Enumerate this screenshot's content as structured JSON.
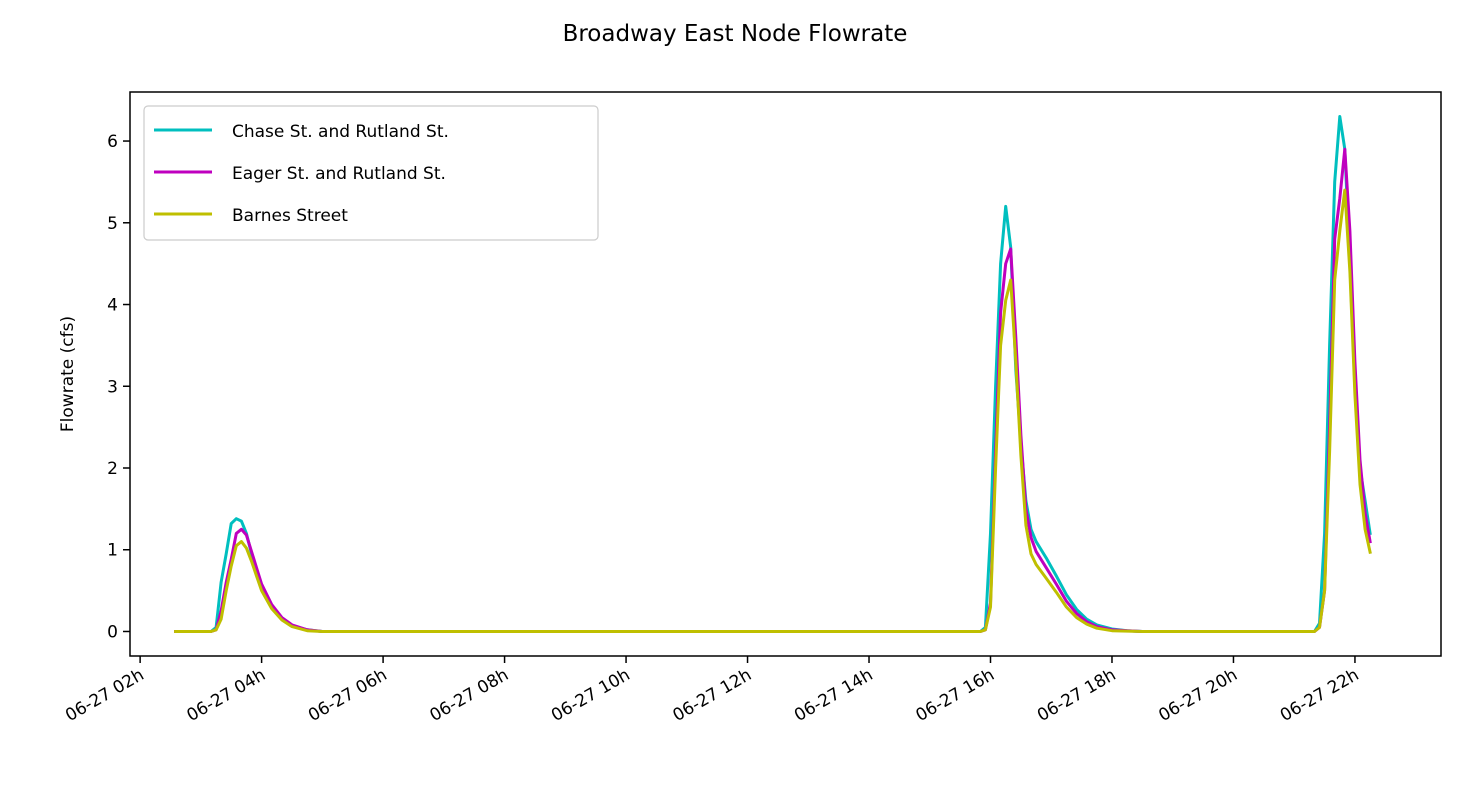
{
  "chart_data": {
    "type": "line",
    "title": "Broadway East Node Flowrate",
    "xlabel": "",
    "ylabel": "Flowrate (cfs)",
    "xlim": [
      "06-27 01:50",
      "06-27 23:25"
    ],
    "ylim": [
      -0.3,
      6.6
    ],
    "x_ticks": [
      "06-27 02h",
      "06-27 04h",
      "06-27 06h",
      "06-27 08h",
      "06-27 10h",
      "06-27 12h",
      "06-27 14h",
      "06-27 16h",
      "06-27 18h",
      "06-27 20h",
      "06-27 22h"
    ],
    "y_ticks": [
      0,
      1,
      2,
      3,
      4,
      5,
      6
    ],
    "grid": false,
    "legend_position": "upper left",
    "series": [
      {
        "name": "Chase St. and Rutland St.",
        "color": "#00bfbf",
        "points": [
          [
            "06-27 02:35",
            0
          ],
          [
            "06-27 03:10",
            0
          ],
          [
            "06-27 03:15",
            0.05
          ],
          [
            "06-27 03:20",
            0.6
          ],
          [
            "06-27 03:25",
            0.95
          ],
          [
            "06-27 03:30",
            1.32
          ],
          [
            "06-27 03:35",
            1.38
          ],
          [
            "06-27 03:40",
            1.35
          ],
          [
            "06-27 03:45",
            1.2
          ],
          [
            "06-27 03:50",
            0.95
          ],
          [
            "06-27 03:55",
            0.72
          ],
          [
            "06-27 04:00",
            0.52
          ],
          [
            "06-27 04:10",
            0.3
          ],
          [
            "06-27 04:20",
            0.15
          ],
          [
            "06-27 04:30",
            0.07
          ],
          [
            "06-27 04:45",
            0.02
          ],
          [
            "06-27 05:00",
            0
          ],
          [
            "06-27 15:50",
            0
          ],
          [
            "06-27 15:55",
            0.05
          ],
          [
            "06-27 16:00",
            1.2
          ],
          [
            "06-27 16:05",
            3.0
          ],
          [
            "06-27 16:10",
            4.5
          ],
          [
            "06-27 16:15",
            5.2
          ],
          [
            "06-27 16:20",
            4.7
          ],
          [
            "06-27 16:25",
            3.2
          ],
          [
            "06-27 16:30",
            2.3
          ],
          [
            "06-27 16:35",
            1.6
          ],
          [
            "06-27 16:40",
            1.25
          ],
          [
            "06-27 16:45",
            1.1
          ],
          [
            "06-27 16:55",
            0.9
          ],
          [
            "06-27 17:05",
            0.68
          ],
          [
            "06-27 17:15",
            0.45
          ],
          [
            "06-27 17:25",
            0.27
          ],
          [
            "06-27 17:35",
            0.15
          ],
          [
            "06-27 17:45",
            0.08
          ],
          [
            "06-27 18:00",
            0.03
          ],
          [
            "06-27 18:15",
            0.01
          ],
          [
            "06-27 18:30",
            0
          ],
          [
            "06-27 21:20",
            0
          ],
          [
            "06-27 21:25",
            0.1
          ],
          [
            "06-27 21:30",
            1.2
          ],
          [
            "06-27 21:35",
            3.5
          ],
          [
            "06-27 21:40",
            5.5
          ],
          [
            "06-27 21:45",
            6.3
          ],
          [
            "06-27 21:50",
            5.9
          ],
          [
            "06-27 21:55",
            4.5
          ],
          [
            "06-27 22:00",
            3.0
          ],
          [
            "06-27 22:05",
            2.0
          ],
          [
            "06-27 22:10",
            1.6
          ],
          [
            "06-27 22:15",
            1.2
          ]
        ]
      },
      {
        "name": "Eager St. and Rutland St.",
        "color": "#bf00bf",
        "points": [
          [
            "06-27 02:35",
            0
          ],
          [
            "06-27 03:10",
            0
          ],
          [
            "06-27 03:15",
            0.02
          ],
          [
            "06-27 03:20",
            0.25
          ],
          [
            "06-27 03:25",
            0.6
          ],
          [
            "06-27 03:30",
            0.88
          ],
          [
            "06-27 03:35",
            1.2
          ],
          [
            "06-27 03:40",
            1.25
          ],
          [
            "06-27 03:45",
            1.18
          ],
          [
            "06-27 03:50",
            0.98
          ],
          [
            "06-27 03:55",
            0.78
          ],
          [
            "06-27 04:00",
            0.58
          ],
          [
            "06-27 04:10",
            0.33
          ],
          [
            "06-27 04:20",
            0.17
          ],
          [
            "06-27 04:30",
            0.08
          ],
          [
            "06-27 04:45",
            0.02
          ],
          [
            "06-27 05:00",
            0
          ],
          [
            "06-27 15:50",
            0
          ],
          [
            "06-27 15:55",
            0.02
          ],
          [
            "06-27 16:00",
            0.35
          ],
          [
            "06-27 16:05",
            2.2
          ],
          [
            "06-27 16:10",
            3.9
          ],
          [
            "06-27 16:15",
            4.5
          ],
          [
            "06-27 16:20",
            4.68
          ],
          [
            "06-27 16:25",
            3.6
          ],
          [
            "06-27 16:30",
            2.4
          ],
          [
            "06-27 16:35",
            1.5
          ],
          [
            "06-27 16:40",
            1.15
          ],
          [
            "06-27 16:45",
            0.98
          ],
          [
            "06-27 16:55",
            0.78
          ],
          [
            "06-27 17:05",
            0.58
          ],
          [
            "06-27 17:15",
            0.37
          ],
          [
            "06-27 17:25",
            0.22
          ],
          [
            "06-27 17:35",
            0.12
          ],
          [
            "06-27 17:45",
            0.06
          ],
          [
            "06-27 18:00",
            0.02
          ],
          [
            "06-27 18:15",
            0.01
          ],
          [
            "06-27 18:30",
            0
          ],
          [
            "06-27 21:20",
            0
          ],
          [
            "06-27 21:25",
            0.05
          ],
          [
            "06-27 21:30",
            0.5
          ],
          [
            "06-27 21:35",
            2.5
          ],
          [
            "06-27 21:40",
            4.8
          ],
          [
            "06-27 21:45",
            5.3
          ],
          [
            "06-27 21:50",
            5.9
          ],
          [
            "06-27 21:55",
            4.9
          ],
          [
            "06-27 22:00",
            3.3
          ],
          [
            "06-27 22:05",
            2.1
          ],
          [
            "06-27 22:10",
            1.45
          ],
          [
            "06-27 22:15",
            1.1
          ]
        ]
      },
      {
        "name": "Barnes Street",
        "color": "#bfbf00",
        "points": [
          [
            "06-27 02:35",
            0
          ],
          [
            "06-27 03:10",
            0
          ],
          [
            "06-27 03:15",
            0.02
          ],
          [
            "06-27 03:20",
            0.15
          ],
          [
            "06-27 03:25",
            0.5
          ],
          [
            "06-27 03:30",
            0.8
          ],
          [
            "06-27 03:35",
            1.05
          ],
          [
            "06-27 03:40",
            1.1
          ],
          [
            "06-27 03:45",
            1.02
          ],
          [
            "06-27 03:50",
            0.86
          ],
          [
            "06-27 03:55",
            0.68
          ],
          [
            "06-27 04:00",
            0.5
          ],
          [
            "06-27 04:10",
            0.28
          ],
          [
            "06-27 04:20",
            0.14
          ],
          [
            "06-27 04:30",
            0.06
          ],
          [
            "06-27 04:45",
            0.01
          ],
          [
            "06-27 05:00",
            0
          ],
          [
            "06-27 15:50",
            0
          ],
          [
            "06-27 15:55",
            0.02
          ],
          [
            "06-27 16:00",
            0.3
          ],
          [
            "06-27 16:05",
            2.0
          ],
          [
            "06-27 16:10",
            3.5
          ],
          [
            "06-27 16:15",
            4.05
          ],
          [
            "06-27 16:20",
            4.3
          ],
          [
            "06-27 16:25",
            3.3
          ],
          [
            "06-27 16:30",
            2.15
          ],
          [
            "06-27 16:35",
            1.3
          ],
          [
            "06-27 16:40",
            0.95
          ],
          [
            "06-27 16:45",
            0.82
          ],
          [
            "06-27 16:55",
            0.65
          ],
          [
            "06-27 17:05",
            0.48
          ],
          [
            "06-27 17:15",
            0.3
          ],
          [
            "06-27 17:25",
            0.17
          ],
          [
            "06-27 17:35",
            0.09
          ],
          [
            "06-27 17:45",
            0.04
          ],
          [
            "06-27 18:00",
            0.01
          ],
          [
            "06-27 18:30",
            0
          ],
          [
            "06-27 21:20",
            0
          ],
          [
            "06-27 21:25",
            0.05
          ],
          [
            "06-27 21:30",
            0.5
          ],
          [
            "06-27 21:35",
            2.2
          ],
          [
            "06-27 21:40",
            4.3
          ],
          [
            "06-27 21:45",
            4.9
          ],
          [
            "06-27 21:50",
            5.4
          ],
          [
            "06-27 21:55",
            4.4
          ],
          [
            "06-27 22:00",
            2.9
          ],
          [
            "06-27 22:05",
            1.8
          ],
          [
            "06-27 22:10",
            1.25
          ],
          [
            "06-27 22:15",
            0.97
          ]
        ]
      }
    ]
  }
}
